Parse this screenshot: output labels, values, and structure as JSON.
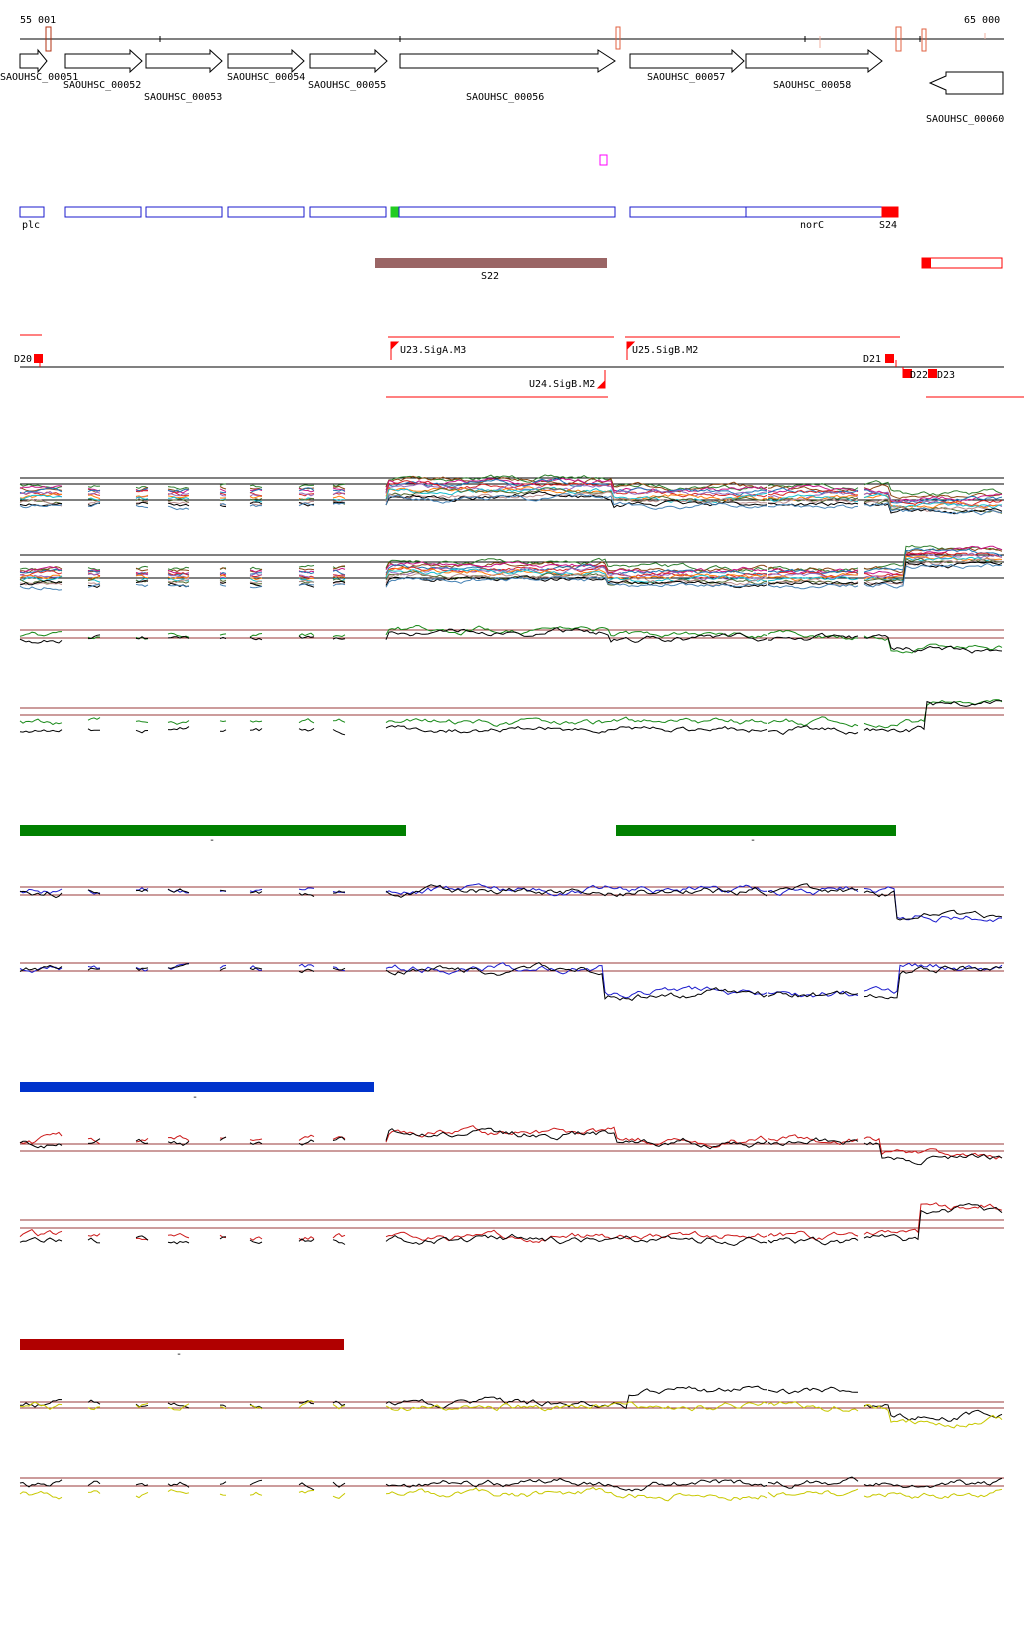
{
  "ruler": {
    "start_label": "55 001",
    "end_label": "65 000"
  },
  "genes": [
    {
      "label": "SAOUHSC_00051",
      "strand": "+"
    },
    {
      "label": "SAOUHSC_00052",
      "strand": "+"
    },
    {
      "label": "SAOUHSC_00053",
      "strand": "+"
    },
    {
      "label": "SAOUHSC_00054",
      "strand": "+"
    },
    {
      "label": "SAOUHSC_00055",
      "strand": "+"
    },
    {
      "label": "SAOUHSC_00056",
      "strand": "+"
    },
    {
      "label": "SAOUHSC_00057",
      "strand": "+"
    },
    {
      "label": "SAOUHSC_00058",
      "strand": "+"
    },
    {
      "label": "SAOUHSC_00060",
      "strand": "-"
    }
  ],
  "annotations": {
    "left": "plc",
    "norc": "norC",
    "s24": "S24"
  },
  "segment": {
    "label": "S22"
  },
  "promoters": {
    "d20": "D20",
    "u23": "U23.SigA.M3",
    "u25": "U25.SigB.M2",
    "u24": "U24.SigB.M2",
    "d21": "D21",
    "d22": "D22",
    "d23": "D23"
  },
  "condition_bars": [
    {
      "label": "-",
      "color": "#008000"
    },
    {
      "label": "-",
      "color": "#0033cc"
    },
    {
      "label": "-",
      "color": "#b00000"
    }
  ],
  "colors": {
    "gene_outline": "#000000",
    "feature_blue": "#1a1acc",
    "feature_red": "#ff0000",
    "segment_brown": "#9a6565",
    "reference_line": "#9a3a3a",
    "magenta_marker": "#ff00ff"
  }
}
